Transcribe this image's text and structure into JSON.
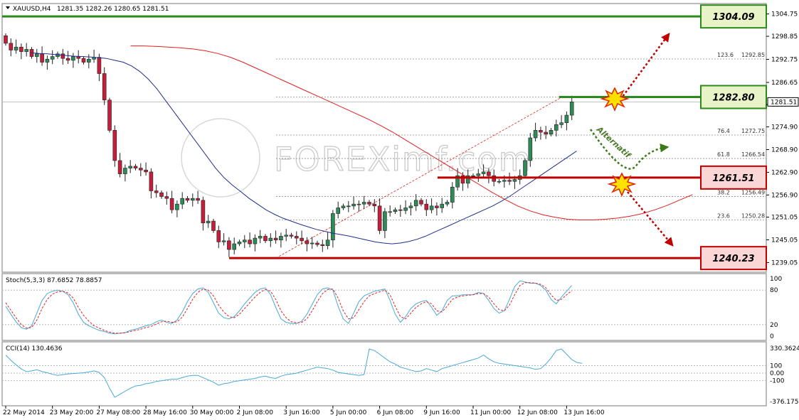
{
  "header": {
    "symbol": "XAUUSD,H4",
    "ohlc": "1281.35 1282.26 1280.65 1281.51"
  },
  "watermark": "FOREXimf.com",
  "colors": {
    "bull": "#2e8b57",
    "bear": "#c41e3a",
    "ma_fast": "#1f2f8f",
    "ma_slow": "#e02020",
    "support": "#c00000",
    "resistance": "#2a8a1a",
    "stoch_main": "#4aa8d8",
    "stoch_signal": "#e02020",
    "cci": "#4aa8d8"
  },
  "chart_data": [
    {
      "type": "candlestick",
      "ylim": [
        1236.5,
        1307.5
      ],
      "yticks": [
        "1304.75",
        "1298.85",
        "1292.75",
        "1286.65",
        "1280.80",
        "1274.90",
        "1268.90",
        "1262.90",
        "1256.90",
        "1251.05",
        "1245.05",
        "1239.05"
      ],
      "ytick_values": [
        1304.75,
        1298.85,
        1292.75,
        1286.65,
        1280.8,
        1274.9,
        1268.9,
        1262.9,
        1256.9,
        1251.05,
        1245.05,
        1239.05
      ],
      "current_price": "1281.51",
      "current_value": 1281.51,
      "xticks": [
        "22 May 2014",
        "23 May 20:00",
        "27 May 08:00",
        "28 May 16:00",
        "30 May 00:00",
        "2 Jun 08:00",
        "3 Jun 16:00",
        "5 Jun 00:00",
        "6 Jun 08:00",
        "9 Jun 16:00",
        "11 Jun 00:00",
        "12 Jun 08:00",
        "13 Jun 16:00"
      ],
      "xtick_bars": [
        0,
        9,
        18,
        27,
        36,
        45,
        54,
        63,
        72,
        81,
        90,
        99,
        108
      ],
      "closes": [
        1297.0,
        1295.2,
        1296.0,
        1294.8,
        1295.4,
        1293.5,
        1294.2,
        1292.0,
        1292.8,
        1293.5,
        1294.2,
        1293.0,
        1292.5,
        1293.5,
        1293.0,
        1292.0,
        1292.8,
        1293.3,
        1289.0,
        1282.0,
        1274.0,
        1266.0,
        1262.5,
        1264.0,
        1264.5,
        1264.0,
        1263.5,
        1263.0,
        1258.0,
        1257.5,
        1256.5,
        1256.0,
        1253.0,
        1254.5,
        1256.0,
        1255.5,
        1256.0,
        1255.5,
        1249.5,
        1250.0,
        1247.5,
        1244.5,
        1244.8,
        1242.5,
        1244.0,
        1244.5,
        1245.0,
        1244.0,
        1245.5,
        1246.0,
        1244.8,
        1245.5,
        1245.0,
        1246.0,
        1246.3,
        1246.0,
        1245.5,
        1244.8,
        1244.0,
        1244.2,
        1243.8,
        1243.5,
        1245.0,
        1252.0,
        1253.5,
        1254.0,
        1254.0,
        1254.5,
        1254.5,
        1255.0,
        1254.5,
        1254.0,
        1247.5,
        1252.5,
        1252.5,
        1253.0,
        1252.8,
        1253.5,
        1254.0,
        1255.5,
        1254.5,
        1253.0,
        1254.0,
        1253.5,
        1254.5,
        1255.0,
        1259.0,
        1262.0,
        1260.0,
        1262.0,
        1262.0,
        1262.5,
        1263.0,
        1262.0,
        1260.5,
        1260.5,
        1260.8,
        1260.5,
        1261.0,
        1262.0,
        1266.0,
        1272.0,
        1274.0,
        1273.5,
        1273.0,
        1274.0,
        1275.5,
        1276.0,
        1278.0,
        1281.5
      ],
      "ma_fast": [
        1294.5,
        1294.3,
        1294.2,
        1294.0,
        1293.8,
        1293.6,
        1293.5,
        1293.4,
        1293.2,
        1293.0,
        1292.5,
        1292.0,
        1291.0,
        1289.5,
        1287.5,
        1285.0,
        1282.0,
        1279.0,
        1276.0,
        1273.0,
        1270.0,
        1267.0,
        1264.0,
        1261.5,
        1259.5,
        1257.8,
        1256.0,
        1254.5,
        1253.0,
        1251.8,
        1250.8,
        1250.0,
        1249.2,
        1248.5,
        1247.8,
        1247.3,
        1246.8,
        1246.4,
        1246.0,
        1245.5,
        1245.0,
        1244.5,
        1244.2,
        1244.0,
        1244.2,
        1244.6,
        1245.2,
        1246.0,
        1247.0,
        1248.0,
        1249.0,
        1250.0,
        1251.0,
        1252.0,
        1253.0,
        1254.0,
        1255.2,
        1256.5,
        1258.0,
        1259.5,
        1261.0,
        1262.5,
        1264.0,
        1265.5,
        1267.0,
        1268.5
      ],
      "ma_fast_start": 3,
      "ma_slow": [
        1296.3,
        1296.3,
        1296.2,
        1296.0,
        1295.8,
        1295.5,
        1295.0,
        1294.3,
        1293.3,
        1292.0,
        1290.5,
        1289.0,
        1287.5,
        1286.0,
        1284.5,
        1283.0,
        1281.5,
        1280.0,
        1278.5,
        1277.0,
        1275.3,
        1273.5,
        1271.5,
        1269.5,
        1267.5,
        1265.5,
        1263.5,
        1261.5,
        1259.5,
        1257.5,
        1255.7,
        1254.0,
        1252.7,
        1251.7,
        1251.0,
        1250.5,
        1250.3,
        1250.3,
        1250.5,
        1250.8,
        1251.3,
        1252.0,
        1253.0,
        1254.2,
        1255.6,
        1257.0
      ],
      "ma_slow_start": 10,
      "levels": [
        {
          "label": "1304.09",
          "value": 1304.09,
          "kind": "resistance"
        },
        {
          "label": "1282.80",
          "value": 1282.8,
          "kind": "resistance"
        },
        {
          "label": "1261.51",
          "value": 1261.51,
          "kind": "support"
        },
        {
          "label": "1240.23",
          "value": 1240.23,
          "kind": "support"
        }
      ],
      "fibonacci": [
        {
          "pct": "123.6",
          "price": "1292.85",
          "value": 1292.85
        },
        {
          "pct": "76.4",
          "price": "1272.75",
          "value": 1272.75
        },
        {
          "pct": "61.8",
          "price": "1266.54",
          "value": 1266.54
        },
        {
          "pct": "38.2",
          "price": "1256.49",
          "value": 1256.49
        },
        {
          "pct": "23.6",
          "price": "1250.28",
          "value": 1250.28
        }
      ],
      "annotation": "Alternatif"
    },
    {
      "type": "line",
      "title": "Stoch(5,3,3) 87.6852 78.8857",
      "ylim": [
        0,
        100
      ],
      "yticks": [
        "100",
        "80",
        "20",
        "0"
      ],
      "ytick_values": [
        100,
        80,
        20,
        0
      ],
      "main": [
        52,
        38,
        25,
        15,
        12,
        18,
        40,
        62,
        74,
        78,
        80,
        78,
        72,
        58,
        38,
        24,
        18,
        14,
        10,
        8,
        5,
        4,
        5,
        6,
        10,
        12,
        15,
        18,
        20,
        25,
        28,
        24,
        22,
        28,
        42,
        60,
        74,
        82,
        84,
        76,
        58,
        40,
        32,
        30,
        34,
        44,
        56,
        66,
        76,
        82,
        84,
        72,
        50,
        30,
        24,
        22,
        22,
        26,
        38,
        55,
        72,
        82,
        84,
        80,
        52,
        30,
        22,
        40,
        60,
        70,
        74,
        78,
        80,
        82,
        62,
        38,
        24,
        34,
        48,
        56,
        60,
        62,
        50,
        36,
        44,
        62,
        70,
        70,
        72,
        72,
        72,
        76,
        74,
        62,
        48,
        40,
        44,
        64,
        86,
        96,
        94,
        92,
        92,
        88,
        80,
        64,
        56,
        68,
        78,
        88
      ],
      "signal": [
        58,
        45,
        32,
        20,
        14,
        15,
        28,
        48,
        64,
        73,
        77,
        78,
        75,
        66,
        50,
        36,
        26,
        18,
        14,
        10,
        7,
        5,
        5,
        6,
        8,
        10,
        12,
        15,
        17,
        21,
        25,
        26,
        24,
        25,
        33,
        48,
        64,
        76,
        82,
        80,
        70,
        54,
        42,
        34,
        32,
        38,
        48,
        58,
        68,
        76,
        81,
        78,
        64,
        44,
        32,
        25,
        23,
        24,
        30,
        44,
        60,
        74,
        81,
        82,
        66,
        44,
        30,
        32,
        46,
        60,
        70,
        74,
        77,
        80,
        72,
        52,
        34,
        30,
        40,
        50,
        56,
        60,
        56,
        44,
        42,
        52,
        64,
        68,
        70,
        71,
        72,
        74,
        74,
        68,
        56,
        46,
        44,
        54,
        72,
        88,
        93,
        93,
        92,
        90,
        84,
        72,
        62,
        64,
        72,
        79
      ]
    },
    {
      "type": "line",
      "title": "CCI(14) 130.4636",
      "ylim": [
        -376.1756,
        330.3624
      ],
      "yticks": [
        "330.3624",
        "100",
        "0.00",
        "-100",
        "-376.1756"
      ],
      "ytick_values": [
        330.3624,
        100,
        0,
        -100,
        -376.1756
      ],
      "values": [
        240,
        170,
        110,
        55,
        20,
        30,
        45,
        20,
        5,
        -15,
        -30,
        -20,
        -10,
        -5,
        0,
        5,
        15,
        30,
        10,
        -60,
        -200,
        -320,
        -280,
        -240,
        -200,
        -170,
        -160,
        -140,
        -130,
        -110,
        -100,
        -90,
        -80,
        -80,
        -60,
        -40,
        -30,
        -30,
        -60,
        -90,
        -120,
        -160,
        -140,
        -130,
        -110,
        -100,
        -90,
        -80,
        -70,
        -50,
        -40,
        -60,
        -70,
        -40,
        -20,
        -10,
        0,
        20,
        40,
        60,
        80,
        70,
        60,
        40,
        10,
        0,
        -10,
        -20,
        -30,
        -20,
        320,
        300,
        250,
        200,
        150,
        120,
        80,
        60,
        40,
        20,
        30,
        60,
        40,
        20,
        60,
        80,
        100,
        120,
        140,
        160,
        180,
        200,
        240,
        190,
        150,
        130,
        120,
        110,
        100,
        90,
        80,
        70,
        50,
        60,
        120,
        200,
        300,
        320,
        250,
        180,
        140,
        130
      ]
    }
  ]
}
